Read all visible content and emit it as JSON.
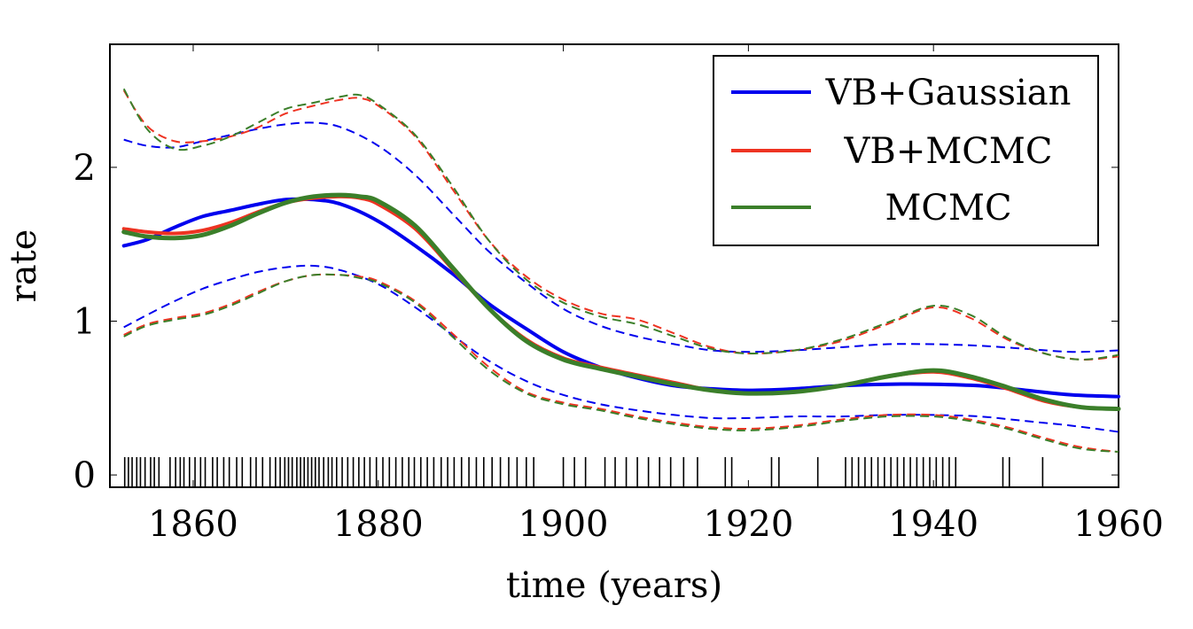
{
  "chart_data": {
    "type": "line",
    "xlabel": "time (years)",
    "ylabel": "rate",
    "xlim": [
      1851,
      1960
    ],
    "ylim": [
      -0.08,
      2.8
    ],
    "xticks": [
      1860,
      1880,
      1900,
      1920,
      1940,
      1960
    ],
    "xtick_labels": [
      "1860",
      "1880",
      "1900",
      "1920",
      "1940",
      "1960"
    ],
    "yticks": [
      0,
      1,
      2
    ],
    "ytick_labels": [
      "0",
      "1",
      "2"
    ],
    "grid": false,
    "legend_position": "top-right",
    "legend": [
      {
        "name": "VB+Gaussian",
        "color": "#0000ee"
      },
      {
        "name": "VB+MCMC",
        "color": "#ee3322"
      },
      {
        "name": "MCMC",
        "color": "#3b7f2a"
      }
    ],
    "series": [
      {
        "name": "VB+Gaussian",
        "color": "#0000ee",
        "style": "solid",
        "width": 4,
        "x": [
          1852.5,
          1855,
          1858,
          1861,
          1864,
          1867,
          1870,
          1873,
          1876,
          1880,
          1884,
          1888,
          1892,
          1896,
          1900,
          1904,
          1908,
          1912,
          1916,
          1920,
          1925,
          1930,
          1935,
          1940,
          1945,
          1950,
          1955,
          1960
        ],
        "y": [
          1.49,
          1.53,
          1.61,
          1.68,
          1.72,
          1.76,
          1.79,
          1.79,
          1.76,
          1.65,
          1.49,
          1.31,
          1.11,
          0.95,
          0.8,
          0.7,
          0.63,
          0.58,
          0.56,
          0.55,
          0.56,
          0.58,
          0.59,
          0.59,
          0.58,
          0.55,
          0.52,
          0.51
        ]
      },
      {
        "name": "VB+Gaussian upper",
        "color": "#0000ee",
        "style": "dashed",
        "width": 2,
        "x": [
          1852.5,
          1855,
          1858,
          1861,
          1864,
          1867,
          1870,
          1873,
          1876,
          1880,
          1884,
          1888,
          1892,
          1896,
          1900,
          1904,
          1908,
          1912,
          1916,
          1920,
          1925,
          1930,
          1935,
          1940,
          1945,
          1950,
          1955,
          1960
        ],
        "y": [
          2.18,
          2.14,
          2.13,
          2.17,
          2.21,
          2.25,
          2.28,
          2.29,
          2.26,
          2.14,
          1.95,
          1.7,
          1.45,
          1.25,
          1.08,
          0.97,
          0.9,
          0.85,
          0.81,
          0.8,
          0.81,
          0.83,
          0.85,
          0.85,
          0.84,
          0.82,
          0.8,
          0.81
        ]
      },
      {
        "name": "VB+Gaussian lower",
        "color": "#0000ee",
        "style": "dashed",
        "width": 2,
        "x": [
          1852.5,
          1855,
          1858,
          1861,
          1864,
          1867,
          1870,
          1873,
          1876,
          1880,
          1884,
          1888,
          1892,
          1896,
          1900,
          1904,
          1908,
          1912,
          1916,
          1920,
          1925,
          1930,
          1935,
          1940,
          1945,
          1950,
          1955,
          1960
        ],
        "y": [
          0.96,
          1.04,
          1.13,
          1.21,
          1.27,
          1.32,
          1.35,
          1.36,
          1.33,
          1.24,
          1.09,
          0.91,
          0.74,
          0.61,
          0.52,
          0.46,
          0.42,
          0.39,
          0.37,
          0.37,
          0.38,
          0.38,
          0.39,
          0.39,
          0.38,
          0.35,
          0.32,
          0.28
        ]
      },
      {
        "name": "VB+MCMC",
        "color": "#ee3322",
        "style": "solid",
        "width": 4,
        "x": [
          1852.5,
          1855,
          1858,
          1861,
          1864,
          1867,
          1870,
          1873,
          1876,
          1878,
          1880,
          1884,
          1888,
          1892,
          1896,
          1900,
          1904,
          1908,
          1912,
          1916,
          1920,
          1925,
          1930,
          1935,
          1940,
          1944,
          1948,
          1952,
          1956,
          1960
        ],
        "y": [
          1.6,
          1.58,
          1.57,
          1.59,
          1.64,
          1.71,
          1.77,
          1.8,
          1.81,
          1.8,
          1.76,
          1.6,
          1.34,
          1.08,
          0.88,
          0.76,
          0.7,
          0.65,
          0.6,
          0.55,
          0.53,
          0.54,
          0.58,
          0.64,
          0.67,
          0.63,
          0.56,
          0.48,
          0.44,
          0.43
        ]
      },
      {
        "name": "VB+MCMC upper",
        "color": "#ee3322",
        "style": "dashed",
        "width": 2,
        "x": [
          1852.5,
          1855,
          1858,
          1861,
          1864,
          1867,
          1870,
          1873,
          1876,
          1878,
          1880,
          1884,
          1888,
          1892,
          1896,
          1900,
          1904,
          1908,
          1912,
          1916,
          1920,
          1925,
          1930,
          1935,
          1940,
          1944,
          1948,
          1952,
          1956,
          1960
        ],
        "y": [
          2.5,
          2.27,
          2.17,
          2.17,
          2.2,
          2.26,
          2.35,
          2.4,
          2.44,
          2.45,
          2.4,
          2.2,
          1.86,
          1.52,
          1.29,
          1.14,
          1.05,
          1.01,
          0.92,
          0.83,
          0.79,
          0.81,
          0.87,
          0.98,
          1.09,
          1.02,
          0.88,
          0.79,
          0.75,
          0.77
        ]
      },
      {
        "name": "VB+MCMC lower",
        "color": "#ee3322",
        "style": "dashed",
        "width": 2,
        "x": [
          1852.5,
          1855,
          1858,
          1861,
          1864,
          1867,
          1870,
          1873,
          1876,
          1878,
          1880,
          1884,
          1888,
          1892,
          1896,
          1900,
          1904,
          1908,
          1912,
          1916,
          1920,
          1925,
          1930,
          1935,
          1940,
          1944,
          1948,
          1952,
          1956,
          1960
        ],
        "y": [
          0.91,
          0.98,
          1.02,
          1.05,
          1.11,
          1.19,
          1.26,
          1.3,
          1.3,
          1.29,
          1.26,
          1.13,
          0.92,
          0.7,
          0.54,
          0.47,
          0.43,
          0.38,
          0.34,
          0.31,
          0.3,
          0.32,
          0.36,
          0.39,
          0.39,
          0.36,
          0.31,
          0.24,
          0.18,
          0.15
        ]
      },
      {
        "name": "MCMC",
        "color": "#3b7f2a",
        "style": "solid",
        "width": 5,
        "x": [
          1852.5,
          1855,
          1858,
          1861,
          1864,
          1867,
          1870,
          1873,
          1876,
          1878,
          1880,
          1884,
          1888,
          1892,
          1896,
          1900,
          1904,
          1908,
          1912,
          1916,
          1920,
          1925,
          1930,
          1935,
          1940,
          1944,
          1948,
          1952,
          1956,
          1960
        ],
        "y": [
          1.58,
          1.55,
          1.54,
          1.56,
          1.62,
          1.7,
          1.77,
          1.81,
          1.82,
          1.81,
          1.78,
          1.62,
          1.35,
          1.08,
          0.87,
          0.75,
          0.69,
          0.64,
          0.59,
          0.55,
          0.53,
          0.54,
          0.58,
          0.64,
          0.68,
          0.64,
          0.57,
          0.49,
          0.44,
          0.43
        ]
      },
      {
        "name": "MCMC upper",
        "color": "#3b7f2a",
        "style": "dashed",
        "width": 2,
        "x": [
          1852.5,
          1855,
          1858,
          1861,
          1864,
          1867,
          1870,
          1873,
          1876,
          1878,
          1880,
          1884,
          1888,
          1892,
          1896,
          1900,
          1904,
          1908,
          1912,
          1916,
          1920,
          1925,
          1930,
          1935,
          1940,
          1944,
          1948,
          1952,
          1956,
          1960
        ],
        "y": [
          2.51,
          2.25,
          2.12,
          2.14,
          2.2,
          2.29,
          2.38,
          2.42,
          2.46,
          2.47,
          2.41,
          2.21,
          1.88,
          1.52,
          1.27,
          1.12,
          1.03,
          0.98,
          0.9,
          0.82,
          0.79,
          0.81,
          0.88,
          0.99,
          1.1,
          1.04,
          0.89,
          0.79,
          0.75,
          0.78
        ]
      },
      {
        "name": "MCMC lower",
        "color": "#3b7f2a",
        "style": "dashed",
        "width": 2,
        "x": [
          1852.5,
          1855,
          1858,
          1861,
          1864,
          1867,
          1870,
          1873,
          1876,
          1878,
          1880,
          1884,
          1888,
          1892,
          1896,
          1900,
          1904,
          1908,
          1912,
          1916,
          1920,
          1925,
          1930,
          1935,
          1940,
          1944,
          1948,
          1952,
          1956,
          1960
        ],
        "y": [
          0.9,
          0.97,
          1.01,
          1.04,
          1.1,
          1.18,
          1.26,
          1.3,
          1.3,
          1.28,
          1.25,
          1.12,
          0.9,
          0.68,
          0.53,
          0.46,
          0.42,
          0.37,
          0.33,
          0.3,
          0.29,
          0.31,
          0.35,
          0.38,
          0.38,
          0.35,
          0.3,
          0.23,
          0.17,
          0.15
        ]
      }
    ],
    "event_times": [
      1852.6,
      1853.0,
      1853.4,
      1853.9,
      1854.3,
      1854.8,
      1855.4,
      1855.8,
      1856.3,
      1857.5,
      1858.1,
      1858.6,
      1859.0,
      1859.6,
      1860.2,
      1860.8,
      1861.3,
      1862.1,
      1862.6,
      1863.3,
      1863.9,
      1864.7,
      1865.3,
      1866.2,
      1866.8,
      1867.5,
      1868.3,
      1868.9,
      1869.4,
      1869.9,
      1870.3,
      1870.7,
      1871.2,
      1871.6,
      1872.0,
      1872.4,
      1872.8,
      1873.2,
      1873.6,
      1874.1,
      1874.6,
      1875.0,
      1875.5,
      1876.1,
      1876.7,
      1877.3,
      1877.9,
      1878.5,
      1879.1,
      1879.8,
      1880.5,
      1881.2,
      1881.9,
      1882.6,
      1883.3,
      1883.9,
      1884.6,
      1885.3,
      1886.0,
      1886.8,
      1887.5,
      1888.2,
      1889.0,
      1889.8,
      1890.6,
      1891.4,
      1892.3,
      1893.2,
      1894.1,
      1895.0,
      1896.0,
      1896.8,
      1900.0,
      1901.2,
      1902.4,
      1904.5,
      1905.6,
      1906.8,
      1908.0,
      1909.2,
      1910.4,
      1911.6,
      1913.0,
      1914.5,
      1917.5,
      1918.2,
      1922.5,
      1923.3,
      1927.5,
      1930.5,
      1931.2,
      1931.9,
      1932.6,
      1933.3,
      1934.0,
      1934.7,
      1935.4,
      1936.1,
      1936.8,
      1937.5,
      1938.2,
      1938.9,
      1939.6,
      1940.3,
      1941.0,
      1941.7,
      1942.4,
      1947.5,
      1948.2,
      1951.8
    ]
  }
}
